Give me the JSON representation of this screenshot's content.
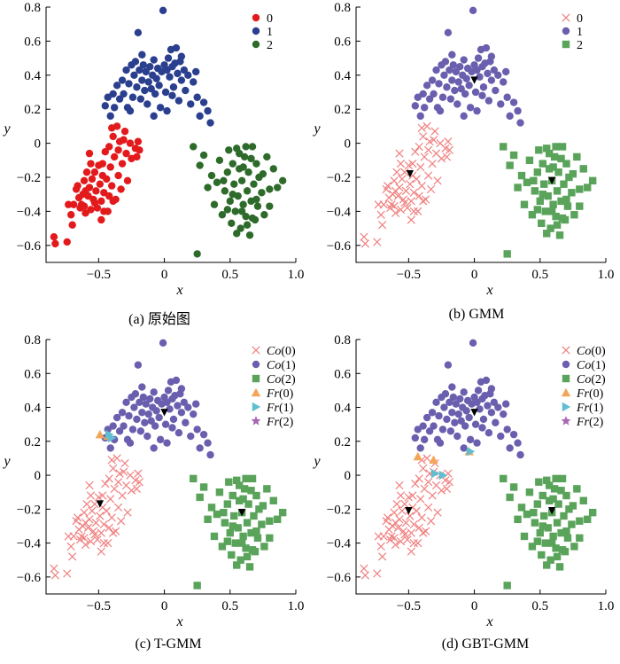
{
  "chart_data": [
    {
      "panel": "a",
      "type": "scatter",
      "caption": "(a) 原始图",
      "xlabel": "x",
      "ylabel": "y",
      "xlim": [
        -0.9,
        1.0
      ],
      "ylim": [
        -0.7,
        0.8
      ],
      "xticks": [
        "−0.5",
        "0",
        "0.5",
        "1.0"
      ],
      "yticks": [
        "0.8",
        "0.6",
        "0.4",
        "0.2",
        "0",
        "−0.2",
        "−0.4",
        "−0.6"
      ],
      "legend": [
        {
          "key": "c0",
          "label": "0",
          "label_main": "0",
          "label_sub": ""
        },
        {
          "key": "c1",
          "label": "1",
          "label_main": "1",
          "label_sub": ""
        },
        {
          "key": "c2",
          "label": "2",
          "label_main": "2",
          "label_sub": ""
        }
      ]
    },
    {
      "panel": "b",
      "type": "scatter",
      "caption": "(b) GMM",
      "xlabel": "x",
      "ylabel": "y",
      "xlim": [
        -0.9,
        1.0
      ],
      "ylim": [
        -0.7,
        0.8
      ],
      "xticks": [
        "−0.5",
        "0",
        "0.5",
        "1.0"
      ],
      "yticks": [
        "0.8",
        "0.6",
        "0.4",
        "0.2",
        "0",
        "−0.2",
        "−0.4",
        "−0.6"
      ],
      "legend": [
        {
          "key": "co0",
          "label": "0",
          "label_main": "0",
          "label_sub": ""
        },
        {
          "key": "co1",
          "label": "1",
          "label_main": "1",
          "label_sub": ""
        },
        {
          "key": "co2",
          "label": "2",
          "label_main": "2",
          "label_sub": ""
        }
      ],
      "centers": [
        [
          -0.49,
          -0.18
        ],
        [
          0.0,
          0.37
        ],
        [
          0.59,
          -0.22
        ]
      ]
    },
    {
      "panel": "c",
      "type": "scatter",
      "caption": "(c) T-GMM",
      "xlabel": "x",
      "ylabel": "y",
      "xlim": [
        -0.9,
        1.0
      ],
      "ylim": [
        -0.7,
        0.8
      ],
      "xticks": [
        "−0.5",
        "0",
        "0.5",
        "1.0"
      ],
      "yticks": [
        "0.8",
        "0.6",
        "0.4",
        "0.2",
        "0",
        "−0.2",
        "−0.4",
        "−0.6"
      ],
      "legend": [
        {
          "key": "co0",
          "label": "Co(0)",
          "label_main": "Co",
          "label_sub": "(0)"
        },
        {
          "key": "co1",
          "label": "Co(1)",
          "label_main": "Co",
          "label_sub": "(1)"
        },
        {
          "key": "co2",
          "label": "Co(2)",
          "label_main": "Co",
          "label_sub": "(2)"
        },
        {
          "key": "fr0",
          "label": "Fr(0)",
          "label_main": "Fr",
          "label_sub": "(0)"
        },
        {
          "key": "fr1",
          "label": "Fr(1)",
          "label_main": "Fr",
          "label_sub": "(1)"
        },
        {
          "key": "fr2",
          "label": "Fr(2)",
          "label_main": "Fr",
          "label_sub": "(2)"
        }
      ],
      "centers": [
        [
          -0.49,
          -0.17
        ],
        [
          0.0,
          0.37
        ],
        [
          0.59,
          -0.22
        ]
      ],
      "frontier_points": [
        [
          -0.49,
          0.24,
          "fr0"
        ],
        [
          -0.43,
          0.23,
          "fr0"
        ],
        [
          -0.42,
          0.24,
          "fr1"
        ],
        [
          -0.4,
          0.22,
          "fr1"
        ]
      ]
    },
    {
      "panel": "d",
      "type": "scatter",
      "caption": "(d) GBT-GMM",
      "xlabel": "x",
      "ylabel": "y",
      "xlim": [
        -0.9,
        1.0
      ],
      "ylim": [
        -0.7,
        0.8
      ],
      "xticks": [
        "−0.5",
        "0",
        "0.5",
        "1.0"
      ],
      "yticks": [
        "0.8",
        "0.6",
        "0.4",
        "0.2",
        "0",
        "−0.2",
        "−0.4",
        "−0.6"
      ],
      "legend": [
        {
          "key": "co0",
          "label": "Co(0)",
          "label_main": "Co",
          "label_sub": "(0)"
        },
        {
          "key": "co1",
          "label": "Co(1)",
          "label_main": "Co",
          "label_sub": "(1)"
        },
        {
          "key": "co2",
          "label": "Co(2)",
          "label_main": "Co",
          "label_sub": "(2)"
        },
        {
          "key": "fr0",
          "label": "Fr(0)",
          "label_main": "Fr",
          "label_sub": "(0)"
        },
        {
          "key": "fr1",
          "label": "Fr(1)",
          "label_main": "Fr",
          "label_sub": "(1)"
        },
        {
          "key": "fr2",
          "label": "Fr(2)",
          "label_main": "Fr",
          "label_sub": "(2)"
        }
      ],
      "centers": [
        [
          -0.5,
          -0.21
        ],
        [
          0.0,
          0.37
        ],
        [
          0.59,
          -0.21
        ]
      ],
      "frontier_points": [
        [
          -0.43,
          0.11,
          "fr0"
        ],
        [
          -0.31,
          0.09,
          "fr0"
        ],
        [
          -0.04,
          0.14,
          "fr0"
        ],
        [
          -0.3,
          0.01,
          "fr1"
        ],
        [
          -0.24,
          0.0,
          "fr1"
        ],
        [
          -0.03,
          0.14,
          "fr1"
        ]
      ]
    }
  ],
  "dataset": {
    "c0": [
      [
        -0.84,
        -0.55
      ],
      [
        -0.83,
        -0.59
      ],
      [
        -0.74,
        -0.58
      ],
      [
        -0.73,
        -0.36
      ],
      [
        -0.71,
        -0.42
      ],
      [
        -0.69,
        -0.36
      ],
      [
        -0.67,
        -0.27
      ],
      [
        -0.66,
        -0.25
      ],
      [
        -0.65,
        -0.32
      ],
      [
        -0.64,
        -0.38
      ],
      [
        -0.63,
        -0.36
      ],
      [
        -0.61,
        -0.22
      ],
      [
        -0.61,
        -0.37
      ],
      [
        -0.6,
        -0.28
      ],
      [
        -0.59,
        -0.17
      ],
      [
        -0.58,
        -0.31
      ],
      [
        -0.57,
        -0.26
      ],
      [
        -0.56,
        -0.39
      ],
      [
        -0.56,
        -0.12
      ],
      [
        -0.55,
        -0.21
      ],
      [
        -0.54,
        -0.33
      ],
      [
        -0.53,
        -0.17
      ],
      [
        -0.52,
        -0.28
      ],
      [
        -0.51,
        -0.38
      ],
      [
        -0.5,
        -0.13
      ],
      [
        -0.49,
        -0.24
      ],
      [
        -0.48,
        -0.34
      ],
      [
        -0.48,
        -0.45
      ],
      [
        -0.47,
        -0.19
      ],
      [
        -0.46,
        -0.29
      ],
      [
        -0.45,
        -0.05
      ],
      [
        -0.44,
        -0.21
      ],
      [
        -0.43,
        -0.4
      ],
      [
        -0.42,
        -0.31
      ],
      [
        -0.42,
        -0.02
      ],
      [
        -0.41,
        -0.14
      ],
      [
        -0.4,
        -0.25
      ],
      [
        -0.39,
        0.04
      ],
      [
        -0.38,
        -0.08
      ],
      [
        -0.37,
        -0.33
      ],
      [
        -0.36,
        0.1
      ],
      [
        -0.35,
        -0.19
      ],
      [
        -0.34,
        0.01
      ],
      [
        -0.33,
        -0.27
      ],
      [
        -0.32,
        -0.12
      ],
      [
        -0.3,
        0.07
      ],
      [
        -0.29,
        -0.06
      ],
      [
        -0.28,
        -0.22
      ],
      [
        -0.26,
        0.0
      ],
      [
        -0.25,
        -0.09
      ],
      [
        -0.22,
        -0.03
      ],
      [
        -0.21,
        -0.08
      ],
      [
        -0.2,
        0.01
      ],
      [
        -0.19,
        -0.04
      ],
      [
        -0.6,
        -0.41
      ],
      [
        -0.53,
        -0.35
      ],
      [
        -0.46,
        -0.4
      ],
      [
        -0.39,
        -0.34
      ],
      [
        -0.7,
        -0.48
      ],
      [
        -0.57,
        -0.06
      ],
      [
        -0.47,
        -0.12
      ],
      [
        -0.35,
        -0.04
      ],
      [
        -0.4,
        0.09
      ],
      [
        -0.31,
        0.02
      ],
      [
        -0.62,
        -0.3
      ]
    ],
    "c1": [
      [
        -0.45,
        0.22
      ],
      [
        -0.43,
        0.27
      ],
      [
        -0.41,
        0.16
      ],
      [
        -0.39,
        0.29
      ],
      [
        -0.38,
        0.21
      ],
      [
        -0.36,
        0.34
      ],
      [
        -0.34,
        0.26
      ],
      [
        -0.32,
        0.37
      ],
      [
        -0.31,
        0.29
      ],
      [
        -0.29,
        0.43
      ],
      [
        -0.28,
        0.21
      ],
      [
        -0.27,
        0.35
      ],
      [
        -0.25,
        0.46
      ],
      [
        -0.24,
        0.27
      ],
      [
        -0.23,
        0.4
      ],
      [
        -0.22,
        0.48
      ],
      [
        -0.21,
        0.33
      ],
      [
        -0.2,
        0.65
      ],
      [
        -0.19,
        0.43
      ],
      [
        -0.18,
        0.26
      ],
      [
        -0.17,
        0.37
      ],
      [
        -0.16,
        0.46
      ],
      [
        -0.15,
        0.31
      ],
      [
        -0.14,
        0.42
      ],
      [
        -0.13,
        0.23
      ],
      [
        -0.12,
        0.36
      ],
      [
        -0.11,
        0.45
      ],
      [
        -0.1,
        0.32
      ],
      [
        -0.09,
        0.4
      ],
      [
        -0.08,
        0.49
      ],
      [
        -0.07,
        0.29
      ],
      [
        -0.06,
        0.38
      ],
      [
        -0.05,
        0.44
      ],
      [
        -0.04,
        0.34
      ],
      [
        -0.03,
        0.21
      ],
      [
        -0.02,
        0.42
      ],
      [
        -0.01,
        0.78
      ],
      [
        0.0,
        0.46
      ],
      [
        0.01,
        0.3
      ],
      [
        0.02,
        0.43
      ],
      [
        0.03,
        0.5
      ],
      [
        0.04,
        0.39
      ],
      [
        0.05,
        0.55
      ],
      [
        0.06,
        0.45
      ],
      [
        0.07,
        0.33
      ],
      [
        0.08,
        0.47
      ],
      [
        0.09,
        0.56
      ],
      [
        0.1,
        0.41
      ],
      [
        0.11,
        0.25
      ],
      [
        0.12,
        0.48
      ],
      [
        0.13,
        0.37
      ],
      [
        0.15,
        0.43
      ],
      [
        0.16,
        0.31
      ],
      [
        0.18,
        0.4
      ],
      [
        0.2,
        0.23
      ],
      [
        0.22,
        0.36
      ],
      [
        0.25,
        0.27
      ],
      [
        0.27,
        0.16
      ],
      [
        0.3,
        0.24
      ],
      [
        0.33,
        0.19
      ],
      [
        0.35,
        0.12
      ],
      [
        -0.08,
        0.16
      ],
      [
        0.02,
        0.19
      ],
      [
        -0.17,
        0.52
      ],
      [
        0.06,
        0.28
      ],
      [
        0.13,
        0.51
      ],
      [
        -0.26,
        0.19
      ],
      [
        0.24,
        0.42
      ]
    ],
    "c2": [
      [
        0.22,
        -0.02
      ],
      [
        0.27,
        -0.13
      ],
      [
        0.3,
        -0.07
      ],
      [
        0.33,
        -0.26
      ],
      [
        0.36,
        -0.19
      ],
      [
        0.38,
        -0.36
      ],
      [
        0.4,
        -0.23
      ],
      [
        0.42,
        -0.1
      ],
      [
        0.44,
        -0.42
      ],
      [
        0.46,
        -0.28
      ],
      [
        0.48,
        -0.17
      ],
      [
        0.49,
        -0.04
      ],
      [
        0.5,
        -0.34
      ],
      [
        0.51,
        -0.47
      ],
      [
        0.52,
        -0.12
      ],
      [
        0.53,
        -0.24
      ],
      [
        0.54,
        -0.4
      ],
      [
        0.55,
        -0.03
      ],
      [
        0.56,
        -0.31
      ],
      [
        0.57,
        -0.15
      ],
      [
        0.58,
        -0.5
      ],
      [
        0.59,
        -0.22
      ],
      [
        0.6,
        -0.36
      ],
      [
        0.61,
        -0.08
      ],
      [
        0.62,
        -0.43
      ],
      [
        0.63,
        -0.28
      ],
      [
        0.64,
        -0.17
      ],
      [
        0.65,
        -0.54
      ],
      [
        0.66,
        -0.34
      ],
      [
        0.67,
        -0.02
      ],
      [
        0.68,
        -0.24
      ],
      [
        0.69,
        -0.45
      ],
      [
        0.7,
        -0.12
      ],
      [
        0.71,
        -0.37
      ],
      [
        0.72,
        -0.2
      ],
      [
        0.74,
        -0.29
      ],
      [
        0.76,
        -0.42
      ],
      [
        0.78,
        -0.08
      ],
      [
        0.8,
        -0.27
      ],
      [
        0.83,
        -0.15
      ],
      [
        0.86,
        -0.26
      ],
      [
        0.9,
        -0.22
      ],
      [
        0.25,
        -0.65
      ],
      [
        0.57,
        -0.06
      ],
      [
        0.63,
        -0.48
      ],
      [
        0.48,
        -0.39
      ],
      [
        0.75,
        -0.18
      ],
      [
        0.66,
        -0.09
      ],
      [
        0.52,
        -0.3
      ],
      [
        0.7,
        -0.33
      ],
      [
        0.59,
        -0.4
      ],
      [
        0.62,
        -0.02
      ],
      [
        0.45,
        -0.22
      ],
      [
        0.8,
        -0.37
      ],
      [
        0.55,
        -0.53
      ],
      [
        0.67,
        -0.44
      ],
      [
        0.6,
        -0.14
      ]
    ]
  },
  "styles": {
    "a": {
      "c0": {
        "shape": "circle",
        "color": "#e31a1c"
      },
      "c1": {
        "shape": "circle",
        "color": "#2b3f8f"
      },
      "c2": {
        "shape": "circle",
        "color": "#2e6b2b"
      }
    },
    "default": {
      "co0": {
        "shape": "x",
        "color": "#f08080"
      },
      "co1": {
        "shape": "circle",
        "color": "#6a5fae"
      },
      "co2": {
        "shape": "square",
        "color": "#5aa35a"
      },
      "fr0": {
        "shape": "triangle-up",
        "color": "#f2a65a"
      },
      "fr1": {
        "shape": "triangle-right",
        "color": "#5fbfd0"
      },
      "fr2": {
        "shape": "star",
        "color": "#a866b3"
      },
      "center": {
        "shape": "triangle-down",
        "color": "#000000"
      }
    }
  }
}
